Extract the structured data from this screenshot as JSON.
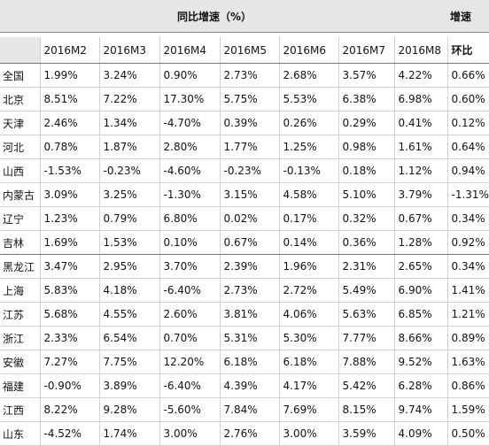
{
  "header": {
    "group_title": "同比增速（%）",
    "right_title": "增速"
  },
  "table": {
    "columns": [
      "2016M2",
      "2016M3",
      "2016M4",
      "2016M5",
      "2016M6",
      "2016M7",
      "2016M8",
      "环比"
    ],
    "rows": [
      [
        "全国",
        "1.99%",
        "3.24%",
        "0.90%",
        "2.73%",
        "2.68%",
        "3.57%",
        "4.22%",
        "0.66%"
      ],
      [
        "北京",
        "8.51%",
        "7.22%",
        "17.30%",
        "5.75%",
        "5.53%",
        "6.38%",
        "6.98%",
        "0.60%"
      ],
      [
        "天津",
        "2.46%",
        "1.34%",
        "-4.70%",
        "0.39%",
        "0.26%",
        "0.29%",
        "0.41%",
        "0.12%"
      ],
      [
        "河北",
        "0.78%",
        "1.87%",
        "2.80%",
        "1.77%",
        "1.25%",
        "0.98%",
        "1.61%",
        "0.64%"
      ],
      [
        "山西",
        "-1.53%",
        "-0.23%",
        "-4.60%",
        "-0.23%",
        "-0.13%",
        "0.18%",
        "1.12%",
        "0.94%"
      ],
      [
        "内蒙古",
        "3.09%",
        "3.25%",
        "-1.30%",
        "3.15%",
        "4.58%",
        "5.10%",
        "3.79%",
        "-1.31%"
      ],
      [
        "辽宁",
        "1.23%",
        "0.79%",
        "6.80%",
        "0.02%",
        "0.17%",
        "0.32%",
        "0.67%",
        "0.34%"
      ],
      [
        "吉林",
        "1.69%",
        "1.53%",
        "0.10%",
        "0.67%",
        "0.14%",
        "0.36%",
        "1.28%",
        "0.92%"
      ],
      [
        "黑龙江",
        "3.47%",
        "2.95%",
        "3.70%",
        "2.39%",
        "1.96%",
        "2.31%",
        "2.65%",
        "0.34%"
      ],
      [
        "上海",
        "5.83%",
        "4.18%",
        "-6.40%",
        "2.73%",
        "2.72%",
        "5.49%",
        "6.90%",
        "1.41%"
      ],
      [
        "江苏",
        "5.68%",
        "4.55%",
        "2.60%",
        "3.81%",
        "4.06%",
        "5.63%",
        "6.85%",
        "1.21%"
      ],
      [
        "浙江",
        "2.33%",
        "6.54%",
        "0.70%",
        "5.31%",
        "5.30%",
        "7.77%",
        "8.66%",
        "0.89%"
      ],
      [
        "安徽",
        "7.27%",
        "7.75%",
        "12.20%",
        "6.18%",
        "6.18%",
        "7.88%",
        "9.52%",
        "1.63%"
      ],
      [
        "福建",
        "-0.90%",
        "3.89%",
        "-6.40%",
        "4.39%",
        "4.17%",
        "5.42%",
        "6.28%",
        "0.86%"
      ],
      [
        "江西",
        "8.22%",
        "9.28%",
        "-5.60%",
        "7.84%",
        "7.69%",
        "8.15%",
        "9.74%",
        "1.59%"
      ],
      [
        "山东",
        "-4.52%",
        "1.74%",
        "3.00%",
        "2.76%",
        "3.00%",
        "3.59%",
        "4.09%",
        "0.50%"
      ]
    ]
  }
}
